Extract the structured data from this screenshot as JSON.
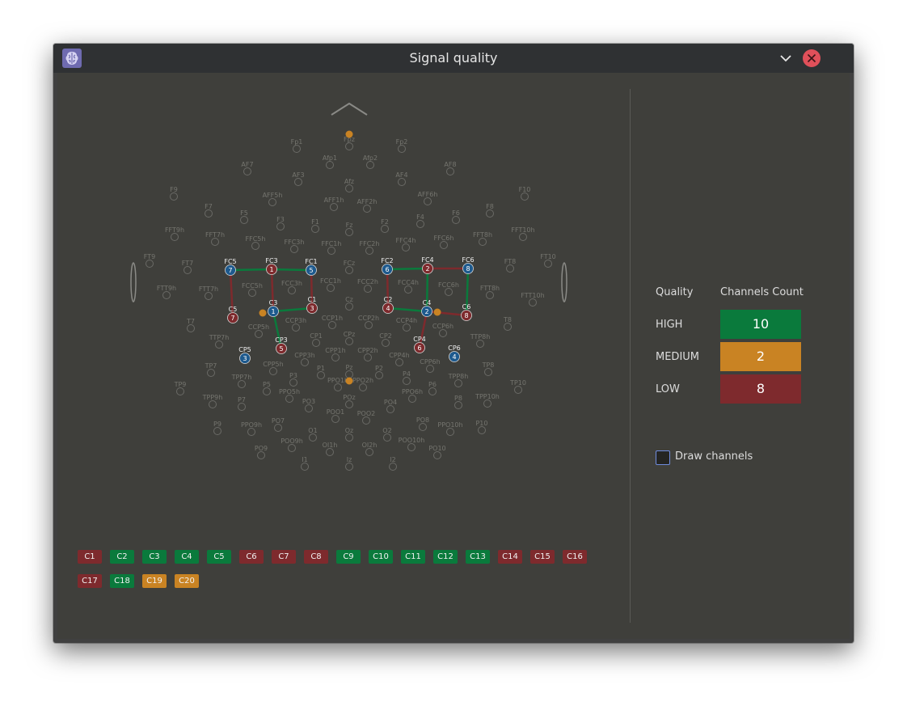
{
  "window": {
    "title": "Signal quality"
  },
  "colors": {
    "high": "#0a7a3c",
    "medium": "#c98323",
    "low": "#7e2a2d",
    "blue": "#1e5a8e"
  },
  "quality_table": {
    "header_quality": "Quality",
    "header_count": "Channels Count",
    "rows": [
      {
        "label": "HIGH",
        "count": "10"
      },
      {
        "label": "MEDIUM",
        "count": "2"
      },
      {
        "label": "LOW",
        "count": "8"
      }
    ]
  },
  "draw_channels": {
    "label": "Draw channels",
    "checked": false
  },
  "channel_chips": [
    {
      "label": "C1",
      "quality": "low"
    },
    {
      "label": "C2",
      "quality": "high"
    },
    {
      "label": "C3",
      "quality": "high"
    },
    {
      "label": "C4",
      "quality": "high"
    },
    {
      "label": "C5",
      "quality": "high"
    },
    {
      "label": "C6",
      "quality": "low"
    },
    {
      "label": "C7",
      "quality": "low"
    },
    {
      "label": "C8",
      "quality": "low"
    },
    {
      "label": "C9",
      "quality": "high"
    },
    {
      "label": "C10",
      "quality": "high"
    },
    {
      "label": "C11",
      "quality": "high"
    },
    {
      "label": "C12",
      "quality": "high"
    },
    {
      "label": "C13",
      "quality": "high"
    },
    {
      "label": "C14",
      "quality": "low"
    },
    {
      "label": "C15",
      "quality": "low"
    },
    {
      "label": "C16",
      "quality": "low"
    },
    {
      "label": "C17",
      "quality": "low"
    },
    {
      "label": "C18",
      "quality": "high"
    },
    {
      "label": "C19",
      "quality": "medium"
    },
    {
      "label": "C20",
      "quality": "medium"
    }
  ],
  "active_electrodes": [
    {
      "name": "FC5",
      "num": "7",
      "color": "blue"
    },
    {
      "name": "FC3",
      "num": "1",
      "color": "low"
    },
    {
      "name": "FC1",
      "num": "5",
      "color": "blue"
    },
    {
      "name": "C5",
      "num": "7",
      "color": "low"
    },
    {
      "name": "C3",
      "num": "1",
      "color": "blue"
    },
    {
      "name": "C1",
      "num": "3",
      "color": "low"
    },
    {
      "name": "CP3",
      "num": "5",
      "color": "low"
    },
    {
      "name": "CP5",
      "num": "3",
      "color": "blue"
    },
    {
      "name": "FC2",
      "num": "6",
      "color": "blue"
    },
    {
      "name": "FC4",
      "num": "2",
      "color": "low"
    },
    {
      "name": "FC6",
      "num": "8",
      "color": "blue"
    },
    {
      "name": "C2",
      "num": "4",
      "color": "low"
    },
    {
      "name": "C4",
      "num": "2",
      "color": "blue"
    },
    {
      "name": "C6",
      "num": "8",
      "color": "low"
    },
    {
      "name": "CP4",
      "num": "6",
      "color": "low"
    },
    {
      "name": "CP6",
      "num": "4",
      "color": "blue"
    }
  ],
  "electrode_labels": [
    "Fp1",
    "Fpz",
    "Fp2",
    "AF7",
    "Afp1",
    "Afp2",
    "AF8",
    "AF3",
    "Afz",
    "AF4",
    "F9",
    "AFF5h",
    "AFF1h",
    "AFF2h",
    "AFF6h",
    "F10",
    "F7",
    "F5",
    "F3",
    "F1",
    "Fz",
    "F2",
    "F4",
    "F6",
    "F8",
    "FFT9h",
    "FFT7h",
    "FFC5h",
    "FFC3h",
    "FFC1h",
    "FFC2h",
    "FFC4h",
    "FFC6h",
    "FFT8h",
    "FFT10h",
    "FT9",
    "FT7",
    "FCz",
    "FT8",
    "FT10",
    "FTT9h",
    "FTT7h",
    "FCC5h",
    "FCC3h",
    "FCC1h",
    "FCC2h",
    "FCC4h",
    "FCC6h",
    "FTT8h",
    "FTT10h",
    "Cz",
    "T7",
    "CCP5h",
    "CCP3h",
    "CCP1h",
    "CCP2h",
    "CCP4h",
    "CCP6h",
    "T8",
    "TTP7h",
    "CP1",
    "CPz",
    "CP2",
    "TTP8h",
    "CPP5h",
    "CPP3h",
    "CPP1h",
    "CPP2h",
    "CPP4h",
    "CPP6h",
    "TP7",
    "P1",
    "Pz",
    "P2",
    "TP8",
    "TPP7h",
    "P3",
    "PPO1h",
    "PPO2h",
    "P4",
    "TPP8h",
    "TP9",
    "P5",
    "PPO5h",
    "POz",
    "PPO6h",
    "P6",
    "TP10",
    "TPP9h",
    "P7",
    "PO3",
    "PO4",
    "P8",
    "TPP10h",
    "PO7",
    "POO1",
    "POO2",
    "PO8",
    "P9",
    "PPO9h",
    "O1",
    "Oz",
    "O2",
    "PPO10h",
    "P10",
    "PO9",
    "POO9h",
    "OI1h",
    "OI2h",
    "POO10h",
    "PO10",
    "I1",
    "Iz",
    "I2"
  ]
}
